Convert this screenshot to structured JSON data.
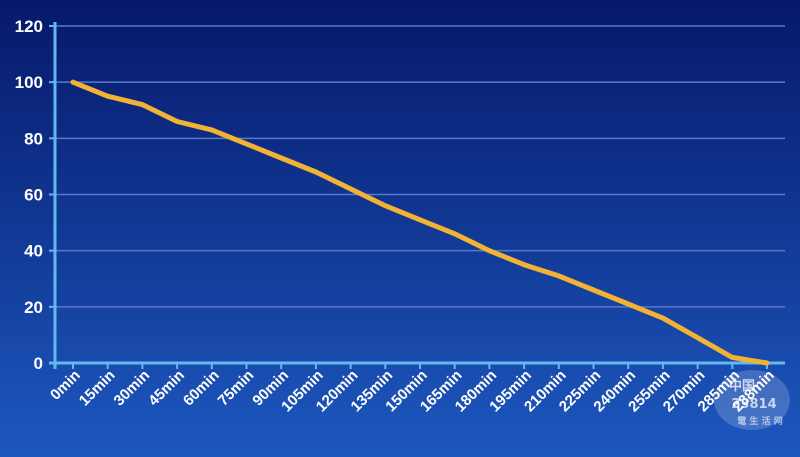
{
  "chart_data": {
    "type": "line",
    "title": "",
    "xlabel": "",
    "ylabel": "",
    "ylim": [
      0,
      120
    ],
    "yticks": [
      0,
      20,
      40,
      60,
      80,
      100,
      120
    ],
    "grid": true,
    "legend": "none",
    "x": [
      "0min",
      "15min",
      "30min",
      "45min",
      "60min",
      "75min",
      "90min",
      "105min",
      "120min",
      "135min",
      "150min",
      "165min",
      "180min",
      "195min",
      "210min",
      "225min",
      "240min",
      "255min",
      "270min",
      "285min",
      "288min"
    ],
    "series": [
      {
        "values": [
          100,
          95,
          92,
          86,
          83,
          78,
          73,
          68,
          62,
          56,
          51,
          46,
          40,
          35,
          31,
          26,
          21,
          16,
          9,
          2,
          0
        ]
      }
    ],
    "colors": {
      "line": "#f2b233",
      "background_top": "#06186a",
      "background_bottom": "#1d58bf",
      "grid": "#5a78c8",
      "axis": "#62b8f0",
      "text": "#ffffff"
    }
  },
  "watermark": {
    "text_top": "中国",
    "text_mid": "23814",
    "text_bottom": "電 生 活 网"
  }
}
